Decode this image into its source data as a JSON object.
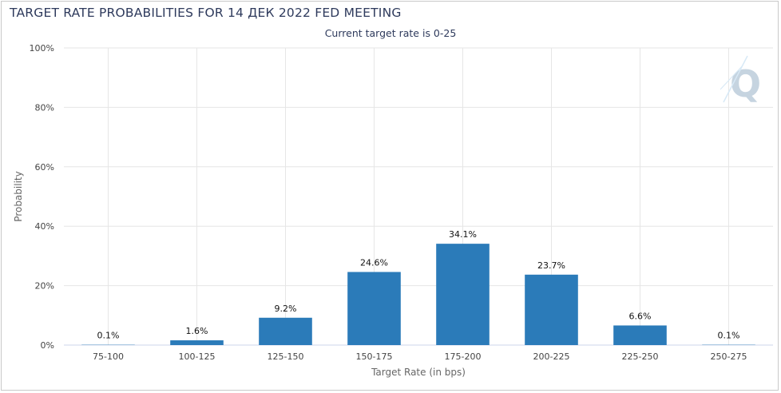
{
  "chart_data": {
    "type": "bar",
    "title": "TARGET RATE PROBABILITIES FOR 14 ДЕК 2022 FED MEETING",
    "subtitle": "Current target rate is 0-25",
    "xlabel": "Target Rate (in bps)",
    "ylabel": "Probability",
    "categories": [
      "75-100",
      "100-125",
      "125-150",
      "150-175",
      "175-200",
      "200-225",
      "225-250",
      "250-275"
    ],
    "values": [
      0.1,
      1.6,
      9.2,
      24.6,
      34.1,
      23.7,
      6.6,
      0.1
    ],
    "value_labels": [
      "0.1%",
      "1.6%",
      "9.2%",
      "24.6%",
      "34.1%",
      "23.7%",
      "6.6%",
      "0.1%"
    ],
    "ylim": [
      0,
      100
    ],
    "yticks": [
      0,
      20,
      40,
      60,
      80,
      100
    ],
    "ytick_labels": [
      "0%",
      "20%",
      "40%",
      "60%",
      "80%",
      "100%"
    ],
    "grid": true,
    "bar_color": "#2b7bb9",
    "logo_text": "Q"
  }
}
